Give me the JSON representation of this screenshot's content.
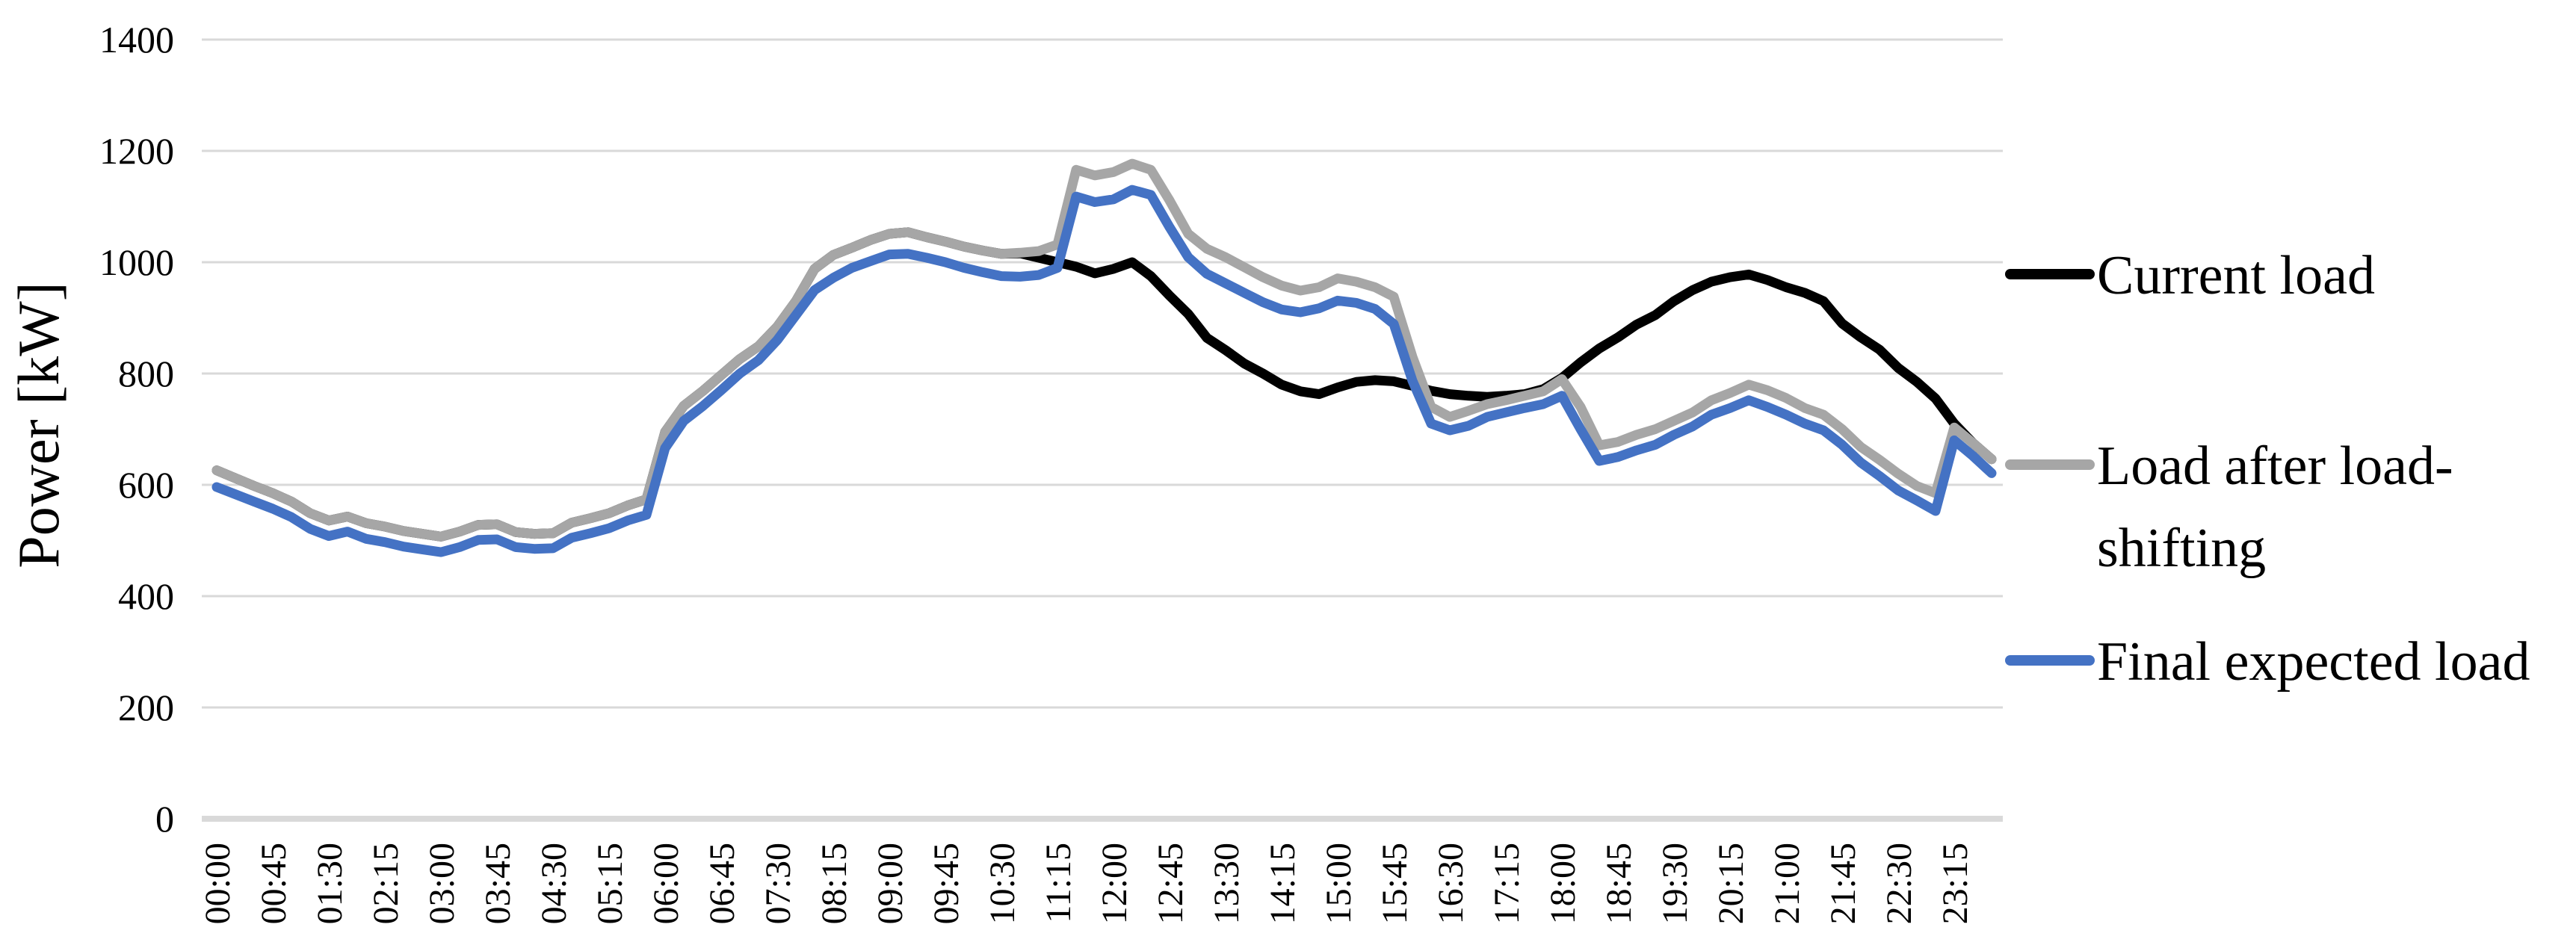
{
  "figure": {
    "background": "#ffffff"
  },
  "axes": {
    "y_title": "Power [kW]",
    "y_tick_labels": [
      "0",
      "200",
      "400",
      "600",
      "800",
      "1000",
      "1200",
      "1400"
    ],
    "x_tick_labels_shown": [
      "00:00",
      "00:45",
      "01:30",
      "02:15",
      "03:00",
      "03:45",
      "04:30",
      "05:15",
      "06:00",
      "06:45",
      "07:30",
      "08:15",
      "09:00",
      "09:45",
      "10:30",
      "11:15",
      "12:00",
      "12:45",
      "13:30",
      "14:15",
      "15:00",
      "15:45",
      "16:30",
      "17:15",
      "18:00",
      "18:45",
      "19:30",
      "20:15",
      "21:00",
      "21:45",
      "22:30",
      "23:15"
    ]
  },
  "colors": {
    "current_load": "#000000",
    "load_after_shifting": "#A6A6A6",
    "final_expected_load": "#4472C4",
    "gridline": "#D9D9D9"
  },
  "legend": {
    "items": [
      {
        "label": "Current load",
        "lines": [
          "Current load"
        ],
        "color": "#000000"
      },
      {
        "label": "Load after load-shifting",
        "lines": [
          "Load after load-",
          "shifting"
        ],
        "color": "#A6A6A6"
      },
      {
        "label": "Final expected load",
        "lines": [
          "Final expected load"
        ],
        "color": "#4472C4"
      }
    ]
  },
  "chart_data": {
    "type": "line",
    "title": "",
    "xlabel": "",
    "ylabel": "Power [kW]",
    "ylim": [
      0,
      1400
    ],
    "y_tick_step": 200,
    "grid": "horizontal",
    "legend_position": "right",
    "x_interval_minutes": 15,
    "x": [
      "00:00",
      "00:15",
      "00:30",
      "00:45",
      "01:00",
      "01:15",
      "01:30",
      "01:45",
      "02:00",
      "02:15",
      "02:30",
      "02:45",
      "03:00",
      "03:15",
      "03:30",
      "03:45",
      "04:00",
      "04:15",
      "04:30",
      "04:45",
      "05:00",
      "05:15",
      "05:30",
      "05:45",
      "06:00",
      "06:15",
      "06:30",
      "06:45",
      "07:00",
      "07:15",
      "07:30",
      "07:45",
      "08:00",
      "08:15",
      "08:30",
      "08:45",
      "09:00",
      "09:15",
      "09:30",
      "09:45",
      "10:00",
      "10:15",
      "10:30",
      "10:45",
      "11:00",
      "11:15",
      "11:30",
      "11:45",
      "12:00",
      "12:15",
      "12:30",
      "12:45",
      "13:00",
      "13:15",
      "13:30",
      "13:45",
      "14:00",
      "14:15",
      "14:30",
      "14:45",
      "15:00",
      "15:15",
      "15:30",
      "15:45",
      "16:00",
      "16:15",
      "16:30",
      "16:45",
      "17:00",
      "17:15",
      "17:30",
      "17:45",
      "18:00",
      "18:15",
      "18:30",
      "18:45",
      "19:00",
      "19:15",
      "19:30",
      "19:45",
      "20:00",
      "20:15",
      "20:30",
      "20:45",
      "21:00",
      "21:15",
      "21:30",
      "21:45",
      "22:00",
      "22:15",
      "22:30",
      "22:45",
      "23:00",
      "23:15",
      "23:30",
      "23:45"
    ],
    "x_labels_every_n": 3,
    "series": [
      {
        "name": "Current load",
        "color": "#000000",
        "values": [
          626,
          612,
          598,
          585,
          570,
          549,
          536,
          543,
          531,
          525,
          517,
          512,
          507,
          516,
          528,
          529,
          515,
          512,
          513,
          532,
          540,
          549,
          563,
          574,
          695,
          742,
          768,
          797,
          826,
          849,
          884,
          930,
          988,
          1013,
          1026,
          1040,
          1051,
          1054,
          1045,
          1037,
          1028,
          1021,
          1015,
          1016,
          1008,
          1000,
          992,
          980,
          988,
          1000,
          975,
          940,
          907,
          864,
          842,
          818,
          800,
          780,
          768,
          763,
          775,
          785,
          788,
          786,
          778,
          769,
          763,
          760,
          758,
          760,
          763,
          772,
          792,
          820,
          845,
          865,
          888,
          905,
          930,
          950,
          965,
          973,
          978,
          968,
          955,
          945,
          930,
          890,
          865,
          843,
          810,
          785,
          755,
          710,
          675,
          646
        ]
      },
      {
        "name": "Load after load-shifting",
        "color": "#A6A6A6",
        "values": [
          626,
          612,
          598,
          585,
          570,
          549,
          536,
          543,
          531,
          525,
          517,
          512,
          507,
          516,
          528,
          529,
          515,
          512,
          513,
          532,
          540,
          549,
          563,
          574,
          695,
          742,
          768,
          797,
          826,
          849,
          884,
          930,
          988,
          1013,
          1026,
          1040,
          1051,
          1054,
          1045,
          1037,
          1028,
          1021,
          1015,
          1017,
          1020,
          1032,
          1166,
          1156,
          1162,
          1177,
          1166,
          1111,
          1051,
          1024,
          1009,
          991,
          973,
          958,
          949,
          955,
          971,
          965,
          955,
          938,
          830,
          740,
          722,
          733,
          745,
          752,
          760,
          768,
          790,
          740,
          671,
          677,
          690,
          700,
          715,
          730,
          752,
          765,
          780,
          770,
          756,
          738,
          726,
          700,
          668,
          645,
          620,
          598,
          585,
          703,
          675,
          646
        ]
      },
      {
        "name": "Final expected load",
        "color": "#4472C4",
        "values": [
          596,
          583,
          570,
          557,
          542,
          521,
          508,
          516,
          503,
          497,
          489,
          484,
          479,
          488,
          501,
          502,
          488,
          485,
          486,
          505,
          513,
          522,
          536,
          546,
          666,
          715,
          741,
          770,
          800,
          824,
          860,
          905,
          950,
          972,
          990,
          1002,
          1014,
          1015,
          1008,
          1000,
          990,
          982,
          975,
          974,
          977,
          990,
          1118,
          1108,
          1113,
          1130,
          1121,
          1063,
          1009,
          979,
          962,
          945,
          928,
          915,
          910,
          917,
          931,
          927,
          916,
          889,
          787,
          710,
          698,
          706,
          722,
          730,
          738,
          745,
          760,
          700,
          643,
          650,
          662,
          672,
          690,
          705,
          726,
          738,
          752,
          740,
          726,
          710,
          698,
          672,
          640,
          616,
          590,
          572,
          553,
          680,
          652,
          621
        ]
      }
    ]
  }
}
